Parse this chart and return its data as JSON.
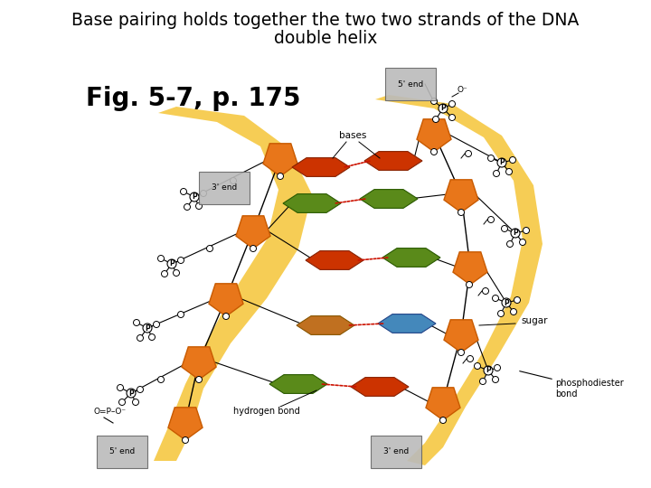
{
  "title_line1": "Base pairing holds together the two two strands of the DNA",
  "title_line2": "double helix",
  "fig_label": "Fig. 5-7, p. 175",
  "title_fontsize": 13.5,
  "fig_label_fontsize": 20,
  "background_color": "#ffffff",
  "colors": {
    "orange": "#E8761A",
    "dark_orange": "#C85A00",
    "green": "#5A8A1A",
    "dark_green": "#2A5A00",
    "red": "#CC3300",
    "dark_red": "#882200",
    "blue": "#4488BB",
    "dark_blue": "#224488",
    "yellow_bg": "#F5C842",
    "teal": "#448888",
    "brown_orange": "#C07020"
  },
  "labels": {
    "bases": "bases",
    "3end_left": "3' end",
    "5end_top": "5' end",
    "sugar": "sugar",
    "hydrogen_bond": "hydrogen bond",
    "phosphodiester_bond": "phosphodiester\nbond",
    "5end_bottom": "5' end",
    "3end_bottom": "3' end"
  }
}
